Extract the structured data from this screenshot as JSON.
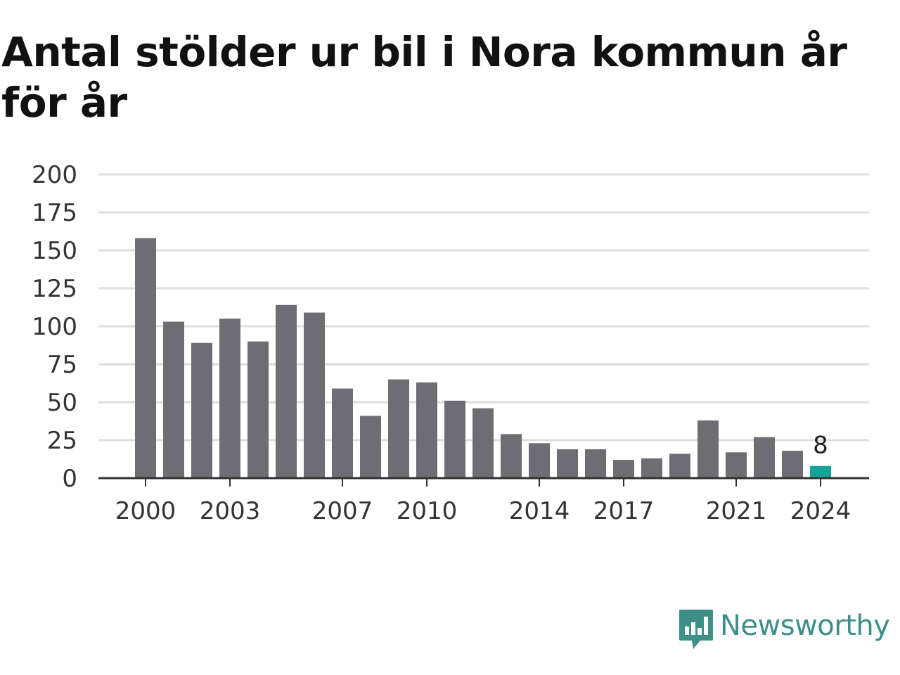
{
  "title": "Antal stölder ur bil i Nora kommun år för år",
  "brand": {
    "name": "Newsworthy",
    "icon": "newsworthy-logo-icon",
    "color": "#3d8f87"
  },
  "colors": {
    "bar": "#6e6d73",
    "highlight": "#14a396",
    "grid": "#dddddd",
    "axis": "#333333"
  },
  "chart_data": {
    "type": "bar",
    "title": "Antal stölder ur bil i Nora kommun år för år",
    "xlabel": "",
    "ylabel": "",
    "categories": [
      "2000",
      "2001",
      "2002",
      "2003",
      "2004",
      "2005",
      "2006",
      "2007",
      "2008",
      "2009",
      "2010",
      "2011",
      "2012",
      "2013",
      "2014",
      "2015",
      "2016",
      "2017",
      "2018",
      "2019",
      "2020",
      "2021",
      "2022",
      "2023",
      "2024"
    ],
    "values": [
      158,
      103,
      89,
      105,
      90,
      114,
      109,
      59,
      41,
      65,
      63,
      51,
      46,
      29,
      23,
      19,
      19,
      12,
      13,
      16,
      38,
      17,
      27,
      18,
      8
    ],
    "x_tick_labels": [
      "2000",
      "2003",
      "2007",
      "2010",
      "2014",
      "2017",
      "2021",
      "2024"
    ],
    "y_ticks": [
      0,
      25,
      50,
      75,
      100,
      125,
      150,
      175,
      200
    ],
    "ylim": [
      0,
      200
    ],
    "highlight_index": 24,
    "data_labels": [
      {
        "index": 24,
        "text": "8"
      }
    ],
    "grid": true,
    "legend": "none"
  }
}
